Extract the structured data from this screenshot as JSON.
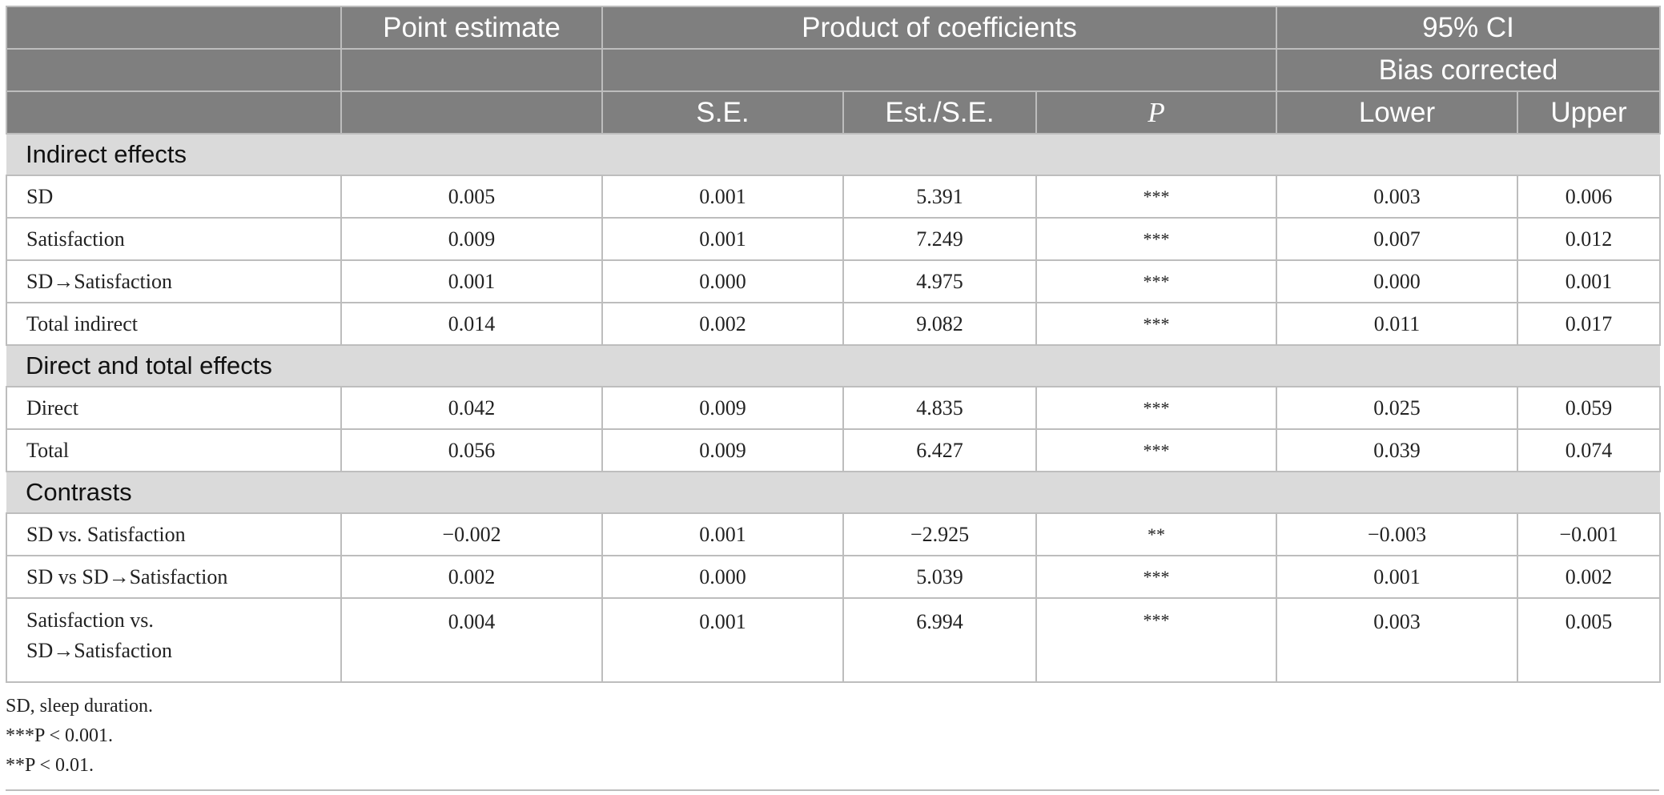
{
  "header": {
    "point_estimate": "Point estimate",
    "product_of_coefficients": "Product of coefficients",
    "ci_95": "95% CI",
    "bias_corrected": "Bias corrected",
    "se": "S.E.",
    "est_se": "Est./S.E.",
    "p": "P",
    "lower": "Lower",
    "upper": "Upper"
  },
  "sections": [
    {
      "title": "Indirect effects",
      "rows": [
        {
          "label": "SD",
          "point": "0.005",
          "se": "0.001",
          "est_se": "5.391",
          "p": "***",
          "lower": "0.003",
          "upper": "0.006"
        },
        {
          "label": "Satisfaction",
          "point": "0.009",
          "se": "0.001",
          "est_se": "7.249",
          "p": "***",
          "lower": "0.007",
          "upper": "0.012"
        },
        {
          "label": "SD→Satisfaction",
          "point": "0.001",
          "se": "0.000",
          "est_se": "4.975",
          "p": "***",
          "lower": "0.000",
          "upper": "0.001"
        },
        {
          "label": "Total indirect",
          "point": "0.014",
          "se": "0.002",
          "est_se": "9.082",
          "p": "***",
          "lower": "0.011",
          "upper": "0.017"
        }
      ]
    },
    {
      "title": "Direct and total effects",
      "rows": [
        {
          "label": "Direct",
          "point": "0.042",
          "se": "0.009",
          "est_se": "4.835",
          "p": "***",
          "lower": "0.025",
          "upper": "0.059"
        },
        {
          "label": "Total",
          "point": "0.056",
          "se": "0.009",
          "est_se": "6.427",
          "p": "***",
          "lower": "0.039",
          "upper": "0.074"
        }
      ]
    },
    {
      "title": "Contrasts",
      "rows": [
        {
          "label": "SD vs. Satisfaction",
          "point": "−0.002",
          "se": "0.001",
          "est_se": "−2.925",
          "p": "**",
          "lower": "−0.003",
          "upper": "−0.001"
        },
        {
          "label": "SD vs SD→Satisfaction",
          "point": "0.002",
          "se": "0.000",
          "est_se": "5.039",
          "p": "***",
          "lower": "0.001",
          "upper": "0.002"
        },
        {
          "label": "Satisfaction vs.\nSD→Satisfaction",
          "point": "0.004",
          "se": "0.001",
          "est_se": "6.994",
          "p": "***",
          "lower": "0.003",
          "upper": "0.005"
        }
      ]
    }
  ],
  "footnotes": [
    "SD, sleep duration.",
    "***P < 0.001.",
    "**P < 0.01."
  ]
}
